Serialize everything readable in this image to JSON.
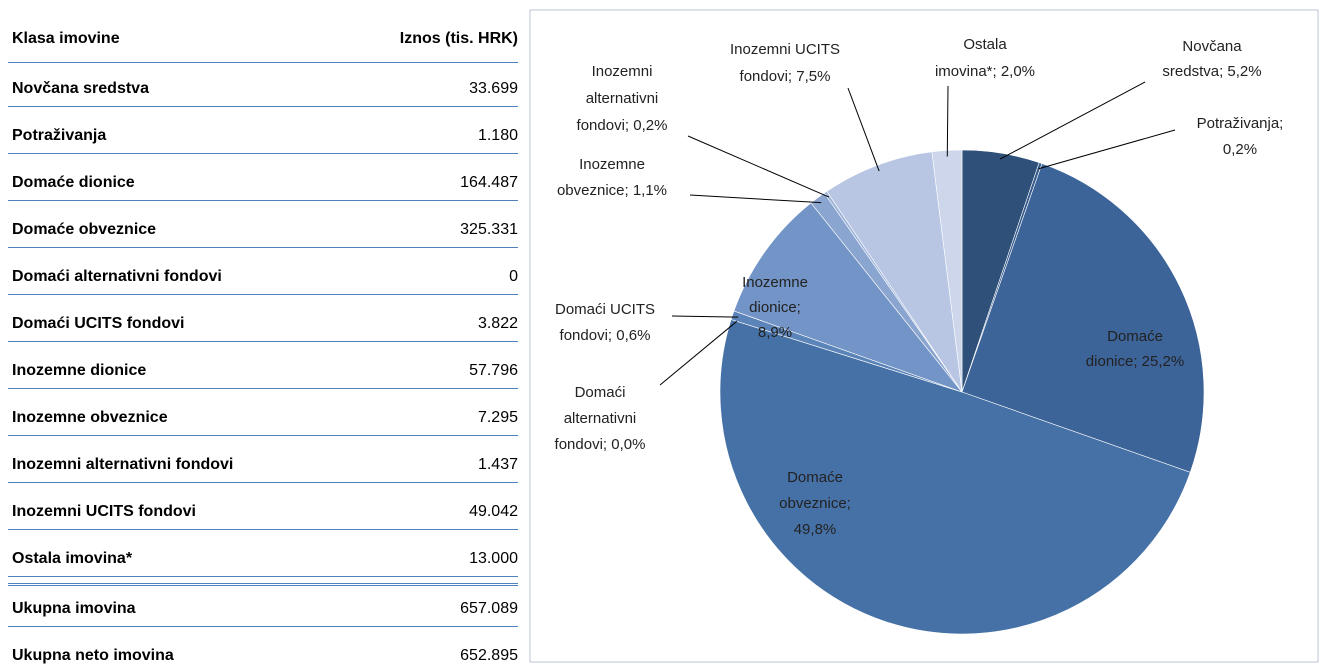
{
  "table": {
    "header": [
      "Klasa imovine",
      "Iznos (tis. HRK)"
    ],
    "rows": [
      [
        "Novčana sredstva",
        "33.699"
      ],
      [
        "Potraživanja",
        "1.180"
      ],
      [
        "Domaće dionice",
        "164.487"
      ],
      [
        "Domaće obveznice",
        "325.331"
      ],
      [
        "Domaći alternativni fondovi",
        "0"
      ],
      [
        "Domaći UCITS fondovi",
        "3.822"
      ],
      [
        "Inozemne dionice",
        "57.796"
      ],
      [
        "Inozemne obveznice",
        "7.295"
      ],
      [
        "Inozemni alternativni fondovi",
        "1.437"
      ],
      [
        "Inozemni UCITS fondovi",
        "49.042"
      ],
      [
        "Ostala imovina*",
        "13.000"
      ]
    ],
    "totals": [
      [
        "Ukupna imovina",
        "657.089"
      ],
      [
        "Ukupna neto imovina",
        "652.895"
      ]
    ]
  },
  "chart_data": {
    "type": "pie",
    "labels": [
      [
        "Novčana",
        "sredstva; 5,2%"
      ],
      [
        "Potraživanja;",
        "0,2%"
      ],
      [
        "Domaće",
        "dionice; 25,2%"
      ],
      [
        "Domaće",
        "obveznice;",
        "49,8%"
      ],
      [
        "Domaći",
        "alternativni",
        "fondovi; 0,0%"
      ],
      [
        "Domaći UCITS",
        "fondovi; 0,6%"
      ],
      [
        "Inozemne",
        "dionice;",
        "8,9%"
      ],
      [
        "Inozemne",
        "obveznice; 1,1%"
      ],
      [
        "Inozemni",
        "alternativni",
        "fondovi; 0,2%"
      ],
      [
        "Inozemni UCITS",
        "fondovi; 7,5%"
      ],
      [
        "Ostala",
        "imovina*; 2,0%"
      ]
    ],
    "values": [
      5.2,
      0.2,
      25.2,
      49.8,
      0.0,
      0.6,
      8.9,
      1.1,
      0.2,
      7.5,
      2.0
    ],
    "colors": [
      "#2f5078",
      "#35598a",
      "#3c6499",
      "#4671a6",
      "#5079b0",
      "#5b84b8",
      "#7394c6",
      "#8ba5d1",
      "#9fb4d9",
      "#b8c6e3",
      "#cdd6ea"
    ]
  }
}
